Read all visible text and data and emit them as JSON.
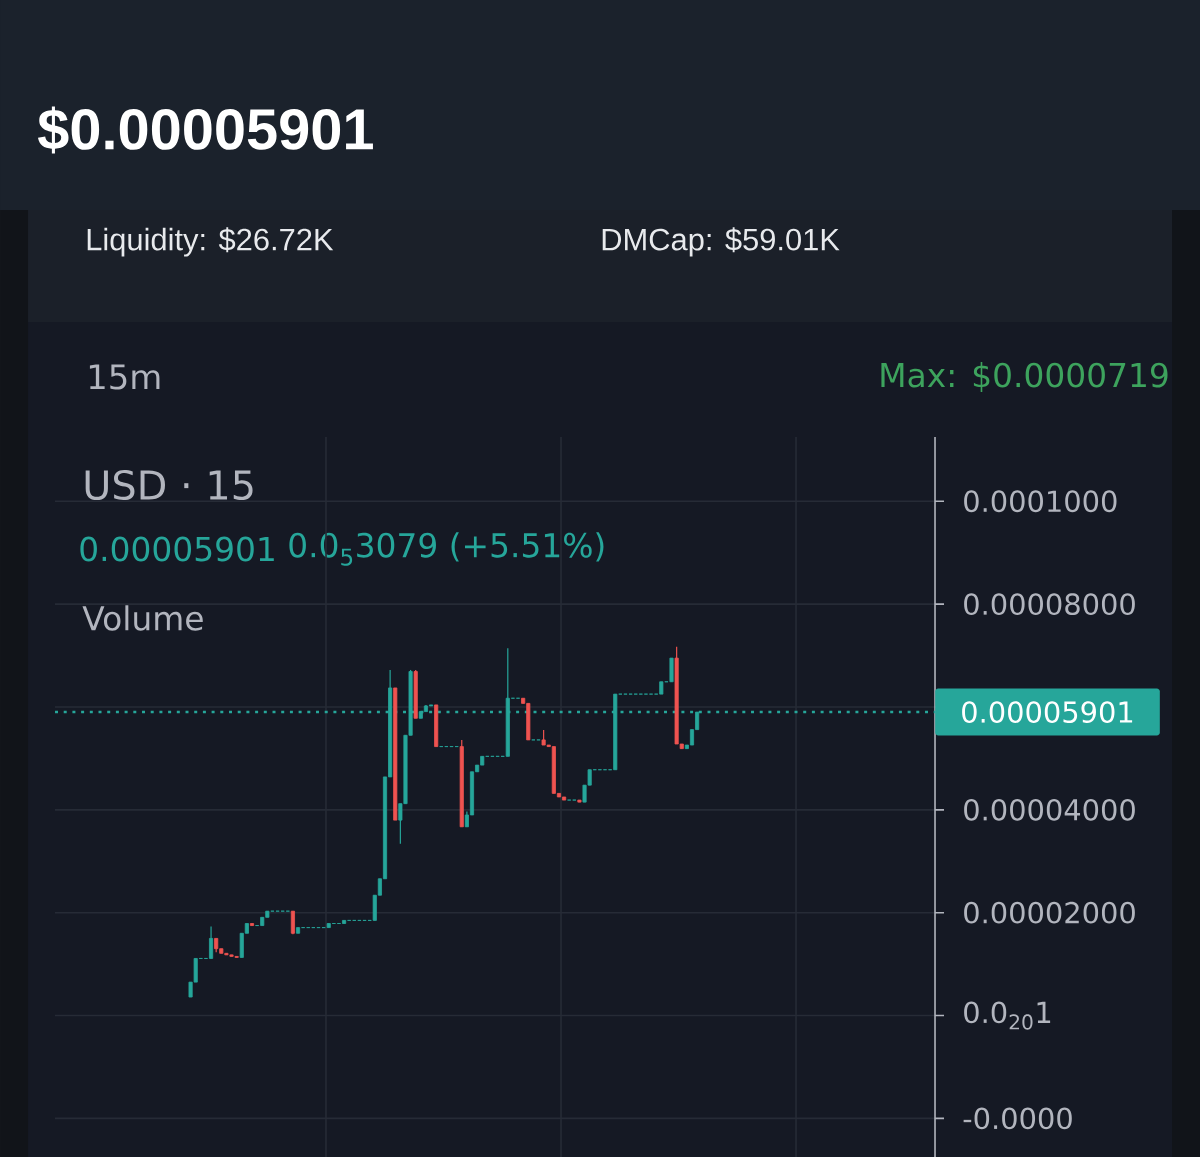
{
  "chart_data": {
    "type": "candlestick",
    "title": "$0.00005901",
    "annotations": [
      "Liquidity: $26.72K",
      "DMCap: $59.01K",
      "15m",
      "Max: $0.0000719",
      "USD · 15",
      "0.00005901",
      "0.0$_{5}$3079 (+5.51%)",
      "Volume"
    ],
    "categories": [
      null,
      null,
      null,
      null,
      null,
      null,
      null,
      null,
      null,
      null,
      null,
      null,
      null,
      null,
      null,
      null,
      null,
      null,
      null,
      null,
      null,
      null,
      null,
      null,
      null,
      null,
      null,
      null,
      null,
      null,
      null,
      null,
      null,
      null,
      null,
      null,
      null,
      null,
      null,
      null,
      null,
      null,
      null,
      null,
      null,
      null,
      null,
      null,
      null,
      null,
      null,
      null,
      null,
      null,
      null,
      null,
      null,
      null,
      null,
      null,
      null,
      null,
      null,
      null,
      null,
      null,
      null,
      null,
      null,
      null,
      null,
      null,
      null,
      null,
      null,
      null,
      null,
      null,
      null,
      null,
      null,
      null,
      null,
      null,
      null,
      null,
      null,
      null,
      null,
      null,
      null,
      null,
      null,
      null,
      null,
      null,
      null,
      null,
      null,
      null,
      null,
      null,
      null,
      null,
      null,
      null,
      null,
      null,
      null,
      null,
      null,
      null,
      null,
      null,
      null,
      null,
      null,
      null,
      null,
      null,
      null,
      null,
      null,
      null,
      null,
      null,
      null,
      null,
      null,
      null,
      null,
      null,
      null,
      null,
      null,
      null,
      null,
      null,
      null,
      null,
      null,
      null,
      null,
      null,
      null,
      null,
      null,
      null,
      null,
      null,
      null,
      null,
      null,
      null,
      null,
      null,
      null,
      null,
      null,
      null,
      null,
      null,
      null,
      null,
      null,
      null,
      null,
      null,
      null,
      null,
      null,
      null
    ],
    "ohlc": [
      null,
      null,
      null,
      null,
      null,
      null,
      null,
      null,
      null,
      null,
      null,
      null,
      null,
      null,
      null,
      null,
      null,
      null,
      null,
      null,
      null,
      null,
      null,
      null,
      null,
      null,
      [
        3.6e-06,
        6.5e-06,
        3.6e-06,
        6.5e-06
      ],
      [
        6.5e-06,
        1.11e-05,
        6.5e-06,
        1.11e-05
      ],
      [
        1.11e-05,
        1.11e-05,
        1.11e-05,
        1.11e-05
      ],
      [
        1.11e-05,
        1.11e-05,
        1.11e-05,
        1.11e-05
      ],
      [
        1.11e-05,
        1.73e-05,
        1.11e-05,
        1.5e-05
      ],
      [
        1.5e-05,
        1.5e-05,
        1.23e-05,
        1.3e-05
      ],
      [
        1.3e-05,
        1.3e-05,
        1.21e-05,
        1.21e-05
      ],
      [
        1.21e-05,
        1.21e-05,
        1.18e-05,
        1.18e-05
      ],
      [
        1.18e-05,
        1.18e-05,
        1.15e-05,
        1.15e-05
      ],
      [
        1.15e-05,
        1.15e-05,
        1.13e-05,
        1.13e-05
      ],
      [
        1.13e-05,
        1.6e-05,
        1.13e-05,
        1.6e-05
      ],
      [
        1.6e-05,
        1.79e-05,
        1.6e-05,
        1.79e-05
      ],
      [
        1.79e-05,
        1.79e-05,
        1.75e-05,
        1.75e-05
      ],
      [
        1.75e-05,
        1.75e-05,
        1.75e-05,
        1.75e-05
      ],
      [
        1.75e-05,
        1.91e-05,
        1.75e-05,
        1.91e-05
      ],
      [
        1.91e-05,
        2.03e-05,
        1.91e-05,
        2.03e-05
      ],
      [
        2.03e-05,
        2.03e-05,
        2.03e-05,
        2.03e-05
      ],
      [
        2.03e-05,
        2.03e-05,
        2.03e-05,
        2.03e-05
      ],
      [
        2.03e-05,
        2.03e-05,
        2.03e-05,
        2.03e-05
      ],
      [
        2.03e-05,
        2.03e-05,
        2.03e-05,
        2.03e-05
      ],
      [
        2.03e-05,
        2.03e-05,
        1.58e-05,
        1.6e-05
      ],
      [
        1.6e-05,
        1.71e-05,
        1.6e-05,
        1.71e-05
      ],
      [
        1.71e-05,
        1.71e-05,
        1.71e-05,
        1.71e-05
      ],
      [
        1.71e-05,
        1.71e-05,
        1.71e-05,
        1.71e-05
      ],
      [
        1.71e-05,
        1.71e-05,
        1.71e-05,
        1.71e-05
      ],
      [
        1.71e-05,
        1.71e-05,
        1.71e-05,
        1.71e-05
      ],
      [
        1.71e-05,
        1.71e-05,
        1.71e-05,
        1.71e-05
      ],
      [
        1.71e-05,
        1.79e-05,
        1.71e-05,
        1.79e-05
      ],
      [
        1.79e-05,
        1.79e-05,
        1.79e-05,
        1.79e-05
      ],
      [
        1.79e-05,
        1.79e-05,
        1.79e-05,
        1.79e-05
      ],
      [
        1.79e-05,
        1.85e-05,
        1.79e-05,
        1.85e-05
      ],
      [
        1.85e-05,
        1.85e-05,
        1.85e-05,
        1.85e-05
      ],
      [
        1.85e-05,
        1.85e-05,
        1.85e-05,
        1.85e-05
      ],
      [
        1.85e-05,
        1.85e-05,
        1.85e-05,
        1.85e-05
      ],
      [
        1.85e-05,
        1.85e-05,
        1.85e-05,
        1.85e-05
      ],
      [
        1.85e-05,
        1.85e-05,
        1.85e-05,
        1.85e-05
      ],
      [
        1.85e-05,
        2.34e-05,
        1.85e-05,
        2.34e-05
      ],
      [
        2.34e-05,
        2.66e-05,
        2.34e-05,
        2.66e-05
      ],
      [
        2.66e-05,
        4.64e-05,
        2.66e-05,
        4.64e-05
      ],
      [
        4.64e-05,
        6.72e-05,
        4.64e-05,
        6.37e-05
      ],
      [
        6.37e-05,
        6.37e-05,
        3.8e-05,
        3.8e-05
      ],
      [
        3.8e-05,
        4.12e-05,
        3.34e-05,
        4.12e-05
      ],
      [
        4.12e-05,
        5.45e-05,
        4.12e-05,
        5.45e-05
      ],
      [
        5.45e-05,
        6.72e-05,
        5.45e-05,
        6.69e-05
      ],
      [
        6.69e-05,
        6.72e-05,
        5.78e-05,
        5.78e-05
      ],
      [
        5.78e-05,
        5.91e-05,
        5.78e-05,
        5.91e-05
      ],
      [
        5.91e-05,
        6.04e-05,
        5.91e-05,
        6.02e-05
      ],
      [
        6.02e-05,
        6.04e-05,
        6.02e-05,
        6.04e-05
      ],
      [
        6.04e-05,
        6.04e-05,
        5.23e-05,
        5.23e-05
      ],
      [
        5.23e-05,
        5.23e-05,
        5.23e-05,
        5.23e-05
      ],
      [
        5.23e-05,
        5.23e-05,
        5.23e-05,
        5.23e-05
      ],
      [
        5.23e-05,
        5.23e-05,
        5.23e-05,
        5.23e-05
      ],
      [
        5.23e-05,
        5.23e-05,
        5.23e-05,
        5.23e-05
      ],
      [
        5.23e-05,
        5.36e-05,
        3.67e-05,
        3.67e-05
      ],
      [
        3.67e-05,
        3.97e-05,
        3.67e-05,
        3.9e-05
      ],
      [
        3.9e-05,
        4.74e-05,
        3.9e-05,
        4.74e-05
      ],
      [
        4.74e-05,
        4.87e-05,
        4.74e-05,
        4.87e-05
      ],
      [
        4.87e-05,
        5.04e-05,
        4.87e-05,
        5.04e-05
      ],
      [
        5.04e-05,
        5.04e-05,
        5.04e-05,
        5.04e-05
      ],
      [
        5.04e-05,
        5.04e-05,
        5.04e-05,
        5.04e-05
      ],
      [
        5.04e-05,
        5.04e-05,
        5.04e-05,
        5.04e-05
      ],
      [
        5.04e-05,
        5.04e-05,
        5.04e-05,
        5.04e-05
      ],
      [
        5.04e-05,
        7.14e-05,
        5.04e-05,
        6.17e-05
      ],
      [
        6.17e-05,
        6.17e-05,
        6.17e-05,
        6.17e-05
      ],
      [
        6.17e-05,
        6.17e-05,
        6.17e-05,
        6.17e-05
      ],
      [
        6.17e-05,
        6.17e-05,
        6.07e-05,
        6.07e-05
      ],
      [
        6.07e-05,
        6.07e-05,
        5.36e-05,
        5.36e-05
      ],
      [
        5.36e-05,
        5.36e-05,
        5.36e-05,
        5.36e-05
      ],
      [
        5.36e-05,
        5.36e-05,
        5.36e-05,
        5.36e-05
      ],
      [
        5.36e-05,
        5.55e-05,
        5.26e-05,
        5.26e-05
      ],
      [
        5.26e-05,
        5.26e-05,
        5.23e-05,
        5.23e-05
      ],
      [
        5.23e-05,
        5.23e-05,
        4.32e-05,
        4.32e-05
      ],
      [
        4.32e-05,
        4.32e-05,
        4.25e-05,
        4.25e-05
      ],
      [
        4.25e-05,
        4.25e-05,
        4.19e-05,
        4.19e-05
      ],
      [
        4.19e-05,
        4.19e-05,
        4.19e-05,
        4.19e-05
      ],
      [
        4.19e-05,
        4.19e-05,
        4.19e-05,
        4.19e-05
      ],
      [
        4.19e-05,
        4.19e-05,
        4.15e-05,
        4.15e-05
      ],
      [
        4.15e-05,
        4.48e-05,
        4.15e-05,
        4.48e-05
      ],
      [
        4.48e-05,
        4.78e-05,
        4.48e-05,
        4.78e-05
      ],
      [
        4.78e-05,
        4.78e-05,
        4.78e-05,
        4.78e-05
      ],
      [
        4.78e-05,
        4.78e-05,
        4.78e-05,
        4.78e-05
      ],
      [
        4.78e-05,
        4.78e-05,
        4.78e-05,
        4.78e-05
      ],
      [
        4.78e-05,
        4.78e-05,
        4.78e-05,
        4.78e-05
      ],
      [
        4.78e-05,
        6.25e-05,
        4.78e-05,
        6.25e-05
      ],
      [
        6.25e-05,
        6.25e-05,
        6.25e-05,
        6.25e-05
      ],
      [
        6.25e-05,
        6.25e-05,
        6.25e-05,
        6.25e-05
      ],
      [
        6.25e-05,
        6.25e-05,
        6.25e-05,
        6.25e-05
      ],
      [
        6.25e-05,
        6.25e-05,
        6.25e-05,
        6.25e-05
      ],
      [
        6.25e-05,
        6.25e-05,
        6.25e-05,
        6.25e-05
      ],
      [
        6.25e-05,
        6.25e-05,
        6.25e-05,
        6.25e-05
      ],
      [
        6.25e-05,
        6.25e-05,
        6.25e-05,
        6.25e-05
      ],
      [
        6.25e-05,
        6.25e-05,
        6.25e-05,
        6.25e-05
      ],
      [
        6.25e-05,
        6.49e-05,
        6.25e-05,
        6.49e-05
      ],
      [
        6.49e-05,
        6.49e-05,
        6.49e-05,
        6.49e-05
      ],
      [
        6.49e-05,
        6.95e-05,
        6.49e-05,
        6.95e-05
      ],
      [
        6.95e-05,
        7.17e-05,
        5.28e-05,
        5.28e-05
      ],
      [
        5.28e-05,
        5.28e-05,
        5.19e-05,
        5.19e-05
      ],
      [
        5.19e-05,
        5.26e-05,
        5.19e-05,
        5.26e-05
      ],
      [
        5.26e-05,
        5.56e-05,
        5.26e-05,
        5.56e-05
      ],
      [
        5.56e-05,
        5.901e-05,
        5.56e-05,
        5.901e-05
      ],
      null,
      null,
      null,
      null,
      null,
      null,
      null,
      null,
      null,
      null,
      null,
      null,
      null,
      null,
      null,
      null,
      null,
      null,
      null,
      null,
      null,
      null,
      null,
      null,
      null,
      null,
      null,
      null,
      null,
      null,
      null,
      null,
      null,
      null,
      null,
      null,
      null,
      null,
      null,
      null,
      null,
      null,
      null,
      null,
      null,
      null
    ],
    "colors": [
      null,
      null,
      null,
      null,
      null,
      null,
      null,
      null,
      null,
      null,
      null,
      null,
      null,
      null,
      null,
      null,
      null,
      null,
      null,
      null,
      null,
      null,
      null,
      null,
      null,
      null,
      "#26a69a",
      "#26a69a",
      "#26a69a",
      "#26a69a",
      "#26a69a",
      "#ef5350",
      "#ef5350",
      "#ef5350",
      "#ef5350",
      "#ef5350",
      "#26a69a",
      "#26a69a",
      "#ef5350",
      "#26a69a",
      "#26a69a",
      "#26a69a",
      "#26a69a",
      "#26a69a",
      "#26a69a",
      "#26a69a",
      "#ef5350",
      "#26a69a",
      "#26a69a",
      "#26a69a",
      "#26a69a",
      "#26a69a",
      "#26a69a",
      "#26a69a",
      "#26a69a",
      "#26a69a",
      "#26a69a",
      "#26a69a",
      "#26a69a",
      "#26a69a",
      "#26a69a",
      "#26a69a",
      "#26a69a",
      "#26a69a",
      "#26a69a",
      "#26a69a",
      "#ef5350",
      "#26a69a",
      "#26a69a",
      "#26a69a",
      "#ef5350",
      "#26a69a",
      "#26a69a",
      "#26a69a",
      "#ef5350",
      "#26a69a",
      "#26a69a",
      "#26a69a",
      "#26a69a",
      "#ef5350",
      "#26a69a",
      "#26a69a",
      "#26a69a",
      "#26a69a",
      "#26a69a",
      "#26a69a",
      "#26a69a",
      "#26a69a",
      "#26a69a",
      "#26a69a",
      "#26a69a",
      "#ef5350",
      "#ef5350",
      "#26a69a",
      "#26a69a",
      "#ef5350",
      "#ef5350",
      "#ef5350",
      "#ef5350",
      "#ef5350",
      "#26a69a",
      "#26a69a",
      "#ef5350",
      "#26a69a",
      "#26a69a",
      "#26a69a",
      "#26a69a",
      "#26a69a",
      "#26a69a",
      "#26a69a",
      "#26a69a",
      "#26a69a",
      "#26a69a",
      "#26a69a",
      "#26a69a",
      "#26a69a",
      "#26a69a",
      "#26a69a",
      "#26a69a",
      "#26a69a",
      "#26a69a",
      "#ef5350",
      "#ef5350",
      "#26a69a",
      "#26a69a",
      "#26a69a",
      null,
      null,
      null,
      null,
      null,
      null,
      null,
      null,
      null,
      null,
      null,
      null,
      null,
      null,
      null,
      null,
      null,
      null,
      null,
      null,
      null,
      null,
      null,
      null,
      null,
      null,
      null,
      null,
      null,
      null,
      null,
      null,
      null,
      null,
      null,
      null,
      null,
      null,
      null,
      null,
      null,
      null,
      null,
      null,
      null,
      null
    ],
    "ylim": [
      -2.75e-05,
      0.0001125
    ],
    "yticks": [
      {
        "value": -2e-05,
        "label": "-0.0000"
      },
      {
        "value": 1e-21,
        "label": "0.0$_{20}$1"
      },
      {
        "value": 2e-05,
        "label": "0.00002000"
      },
      {
        "value": 4e-05,
        "label": "0.00004000"
      },
      {
        "value": 6e-05,
        "label": null
      },
      {
        "value": 8e-05,
        "label": "0.00008000"
      },
      {
        "value": 0.0001,
        "label": "0.0001000"
      }
    ],
    "grid": true,
    "tick_labels": "y",
    "ref_lines": [
      {
        "axis": "y",
        "value": 5.901e-05,
        "label": "0.00005901",
        "color": "#26a69a",
        "line_style": "dotted"
      }
    ]
  }
}
